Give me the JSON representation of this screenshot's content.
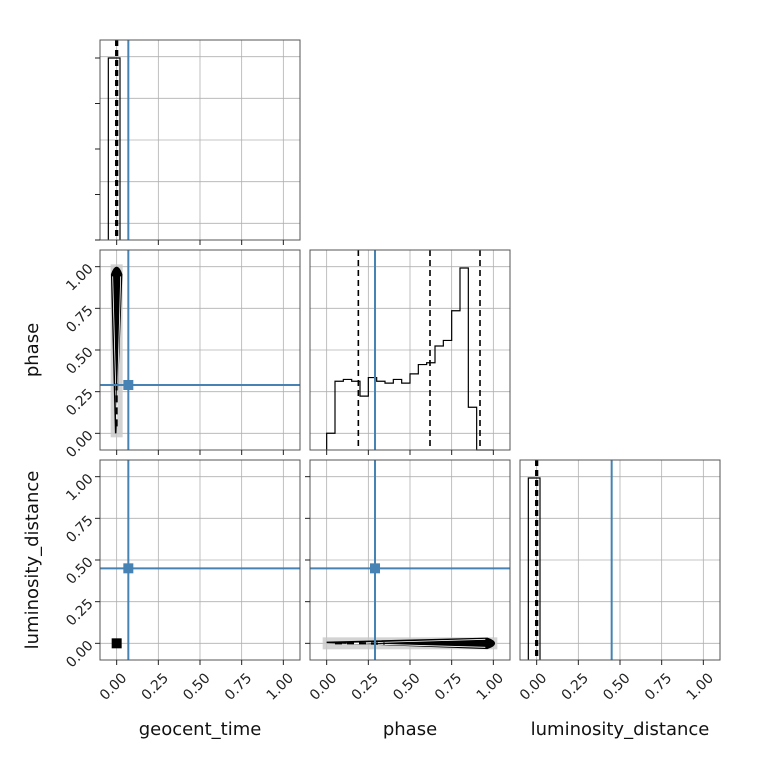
{
  "chart_data": {
    "type": "corner",
    "parameters": [
      "geocent_time",
      "phase",
      "luminosity_distance"
    ],
    "truths": {
      "geocent_time": 0.07,
      "phase": 0.29,
      "luminosity_distance": 0.45
    },
    "tick_labels": [
      "0.00",
      "0.25",
      "0.50",
      "0.75",
      "1.00"
    ],
    "x_axis_labels": [
      "geocent_time",
      "phase",
      "luminosity_distance"
    ],
    "y_axis_labels": [
      "",
      "phase",
      "luminosity_distance"
    ],
    "xlim": [
      -0.1,
      1.1
    ],
    "ylim": [
      -0.1,
      1.1
    ],
    "grid": true,
    "colors": {
      "truth": "#4682b4",
      "hist": "#000000",
      "contour_fill": "#c8c8c8"
    },
    "diagonal_histograms": [
      {
        "param": "geocent_time",
        "bin_edges": [
          -0.05,
          0.02
        ],
        "counts": [
          1.0
        ],
        "quantiles": [
          -0.005,
          0.0,
          0.005
        ]
      },
      {
        "param": "phase",
        "bin_edges": [
          0.0,
          0.05,
          0.1,
          0.15,
          0.2,
          0.25,
          0.3,
          0.35,
          0.4,
          0.45,
          0.5,
          0.55,
          0.6,
          0.65,
          0.7,
          0.75,
          0.8,
          0.85,
          0.9,
          0.95,
          1.0
        ],
        "counts": [
          0.09,
          0.37,
          0.38,
          0.37,
          0.29,
          0.39,
          0.37,
          0.36,
          0.38,
          0.36,
          0.41,
          0.46,
          0.47,
          0.56,
          0.59,
          0.75,
          0.98,
          0.23,
          0.0,
          0.0
        ],
        "quantiles": [
          0.19,
          0.62,
          0.92
        ]
      },
      {
        "param": "luminosity_distance",
        "bin_edges": [
          -0.05,
          0.02
        ],
        "counts": [
          1.0
        ],
        "quantiles": [
          -0.005,
          0.0,
          0.005
        ]
      }
    ],
    "joint_panels": [
      {
        "x": "geocent_time",
        "y": "phase",
        "sample_x": [
          -0.02,
          0.0,
          0.02
        ],
        "sample_y": [
          0.0,
          0.99
        ]
      },
      {
        "x": "geocent_time",
        "y": "luminosity_distance",
        "sample_x": [
          -0.01,
          0.01
        ],
        "sample_y": [
          -0.01,
          0.01
        ]
      },
      {
        "x": "phase",
        "y": "luminosity_distance",
        "sample_x": [
          0.0,
          1.0
        ],
        "sample_y": [
          -0.02,
          0.02
        ]
      }
    ]
  }
}
